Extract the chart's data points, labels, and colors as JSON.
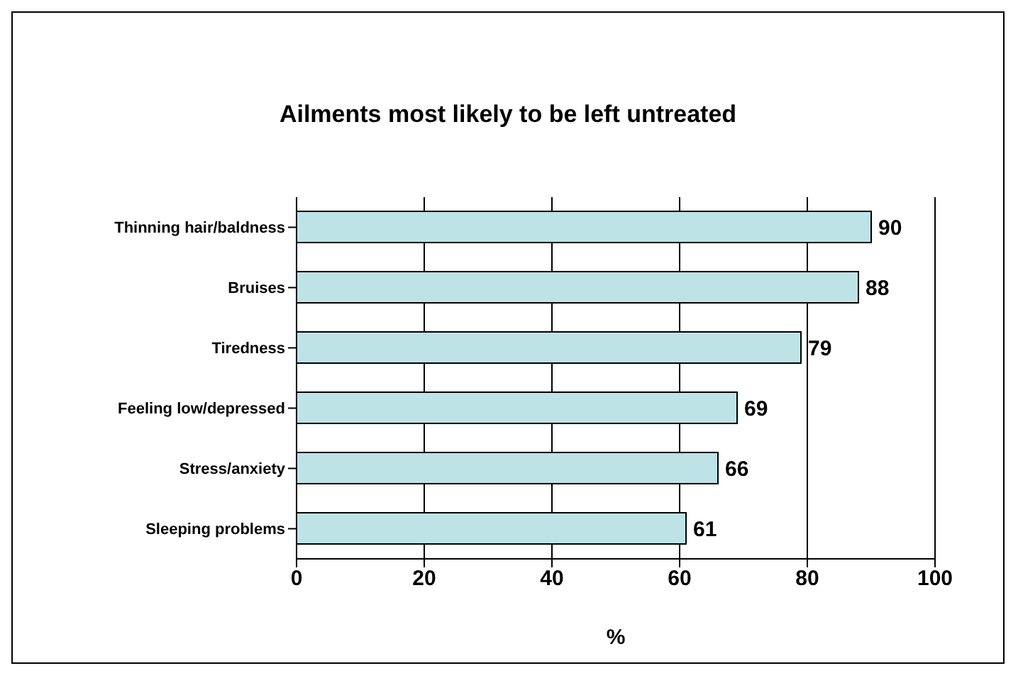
{
  "chart_data": {
    "type": "bar",
    "orientation": "horizontal",
    "title": "Ailments most likely to be left untreated",
    "xlabel": "%",
    "categories": [
      "Thinning hair/baldness",
      "Bruises",
      "Tiredness",
      "Feeling low/depressed",
      "Stress/anxiety",
      "Sleeping problems"
    ],
    "values": [
      90,
      88,
      79,
      69,
      66,
      61
    ],
    "color": "#bde3e6",
    "xlim": [
      0,
      100
    ],
    "xticks": [
      0,
      20,
      40,
      60,
      80,
      100
    ],
    "grid": "x",
    "data_labels": true
  }
}
